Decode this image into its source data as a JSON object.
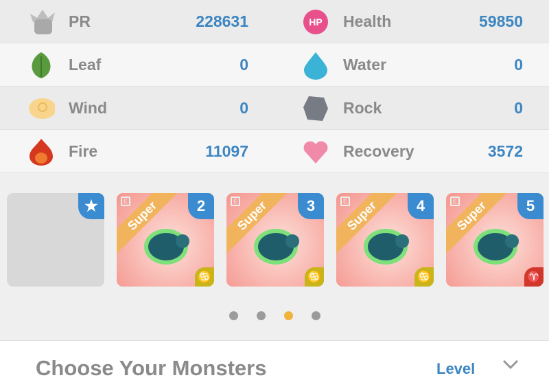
{
  "stats": [
    [
      {
        "label": "PR",
        "value": "228631",
        "icon": "fist-icon"
      },
      {
        "label": "Health",
        "value": "59850",
        "icon": "hp-icon",
        "icon_text": "HP"
      }
    ],
    [
      {
        "label": "Leaf",
        "value": "0",
        "icon": "leaf-icon"
      },
      {
        "label": "Water",
        "value": "0",
        "icon": "water-drop-icon"
      }
    ],
    [
      {
        "label": "Wind",
        "value": "0",
        "icon": "wind-cloud-icon"
      },
      {
        "label": "Rock",
        "value": "0",
        "icon": "rock-icon"
      }
    ],
    [
      {
        "label": "Fire",
        "value": "11097",
        "icon": "fire-icon"
      },
      {
        "label": "Recovery",
        "value": "3572",
        "icon": "heart-icon"
      }
    ]
  ],
  "team": [
    {
      "slot": "★",
      "empty": true
    },
    {
      "slot": "2",
      "rarity": "Super",
      "zodiac": "♋",
      "zodiac_color": "#c9b51a"
    },
    {
      "slot": "3",
      "rarity": "Super",
      "zodiac": "♋",
      "zodiac_color": "#c9b51a"
    },
    {
      "slot": "4",
      "rarity": "Super",
      "zodiac": "♋",
      "zodiac_color": "#c9b51a"
    },
    {
      "slot": "5",
      "rarity": "Super",
      "zodiac": "♈",
      "zodiac_color": "#d2372b"
    }
  ],
  "pagination": {
    "count": 4,
    "active": 2,
    "active_color": "#f0b43c"
  },
  "footer": {
    "title": "Choose Your Monsters",
    "sort_label": "Level"
  },
  "colors": {
    "accent": "#3d86c2"
  }
}
